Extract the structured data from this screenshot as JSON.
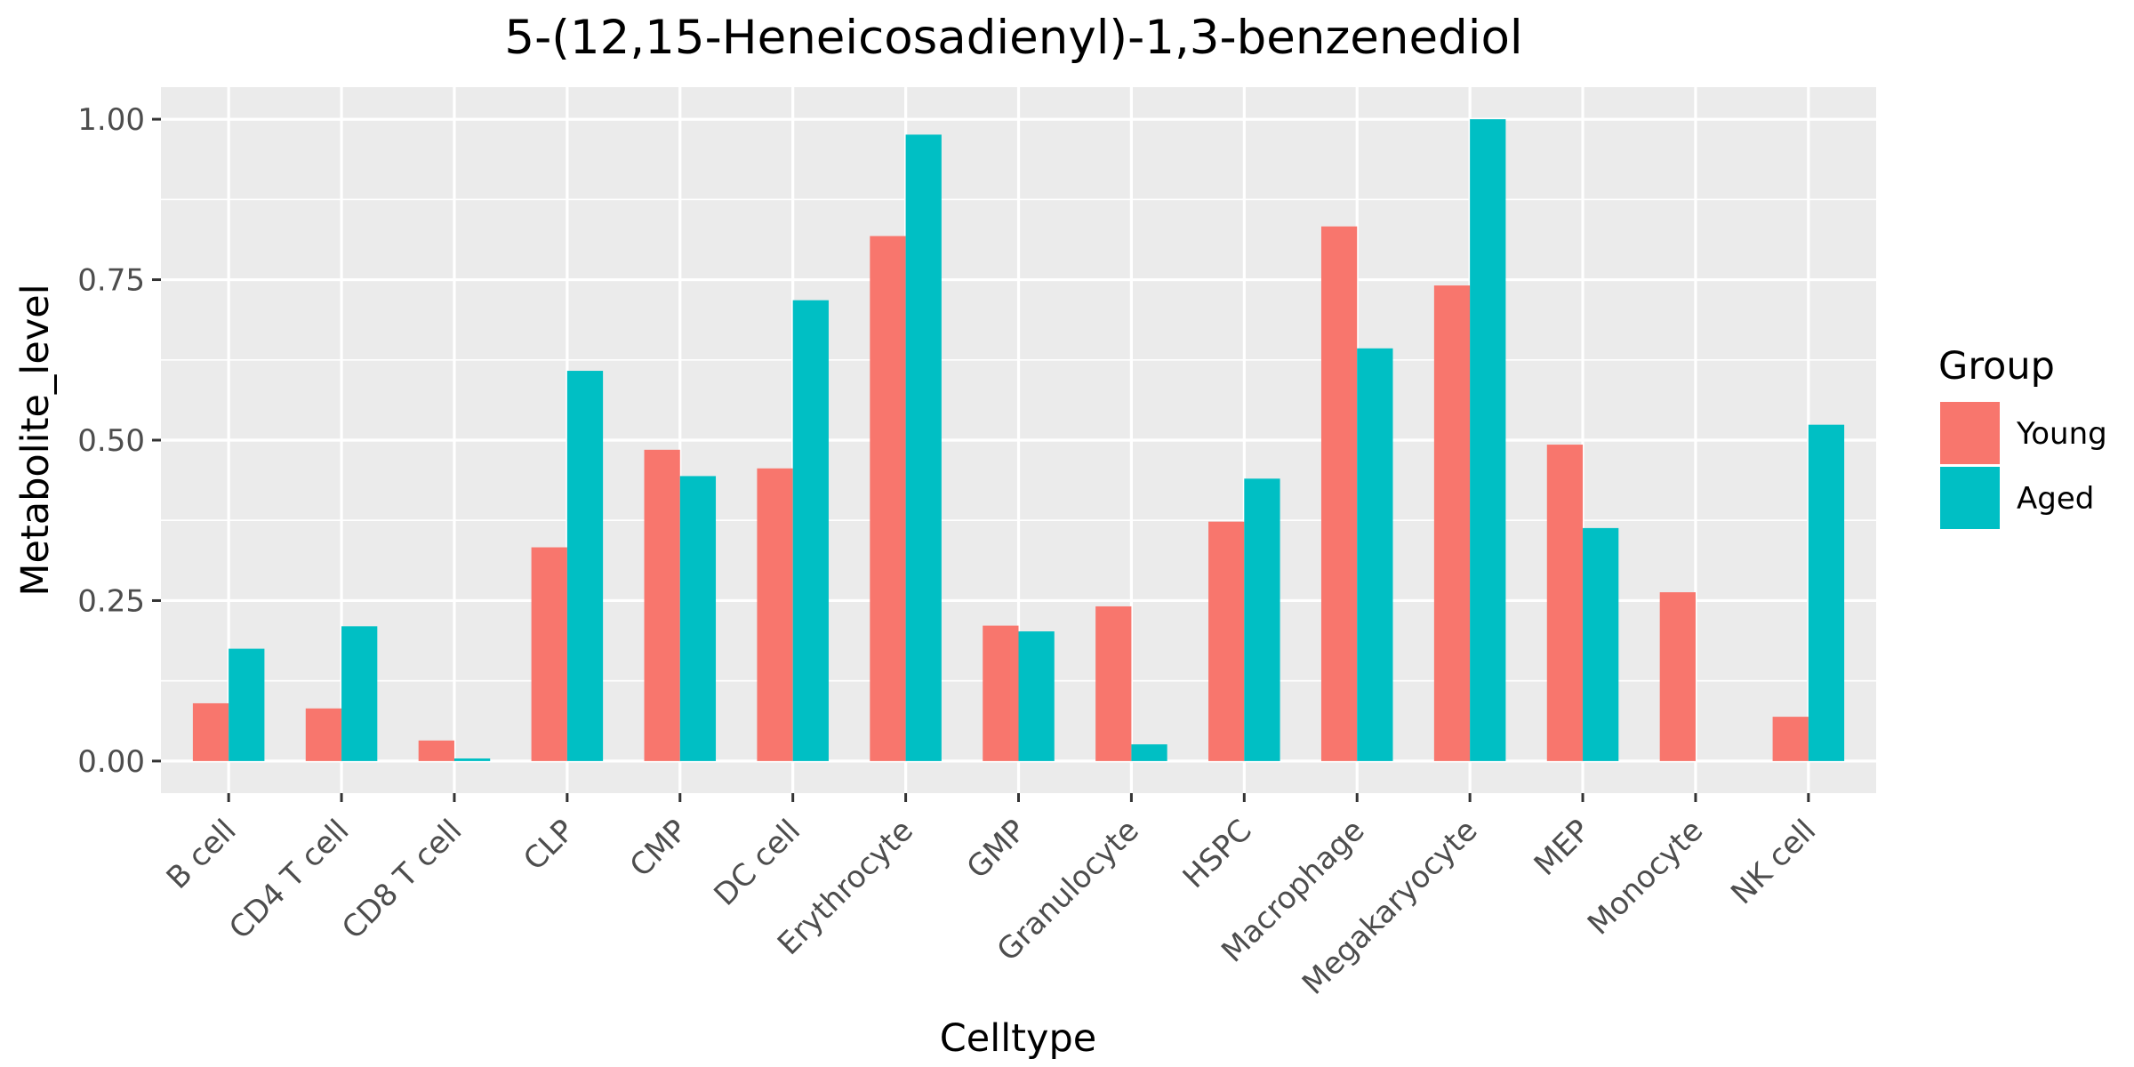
{
  "chart_data": {
    "type": "bar",
    "title": "5-(12,15-Heneicosadienyl)-1,3-benzenediol",
    "xlabel": "Celltype",
    "ylabel": "Metabolite_level",
    "ylim": [
      -0.05,
      1.05
    ],
    "yticks": [
      0,
      0.25,
      0.5,
      0.75,
      1
    ],
    "ytick_labels": [
      "0.00",
      "0.25",
      "0.50",
      "0.75",
      "1.00"
    ],
    "grid": true,
    "legend_title": "Group",
    "legend_position": "right",
    "categories": [
      "B cell",
      "CD4 T cell",
      "CD8 T cell",
      "CLP",
      "CMP",
      "DC cell",
      "Erythrocyte",
      "GMP",
      "Granulocyte",
      "HSPC",
      "Macrophage",
      "Megakaryocyte",
      "MEP",
      "Monocyte",
      "NK cell"
    ],
    "series": [
      {
        "name": "Young",
        "color": "#F8766D",
        "values": [
          0.09,
          0.082,
          0.032,
          0.333,
          0.485,
          0.456,
          0.818,
          0.211,
          0.241,
          0.373,
          0.833,
          0.741,
          0.493,
          0.263,
          0.069
        ]
      },
      {
        "name": "Aged",
        "color": "#00BFC4",
        "values": [
          0.175,
          0.21,
          0.004,
          0.608,
          0.444,
          0.718,
          0.976,
          0.202,
          0.026,
          0.44,
          0.643,
          1.0,
          0.363,
          null,
          0.524
        ]
      }
    ]
  }
}
